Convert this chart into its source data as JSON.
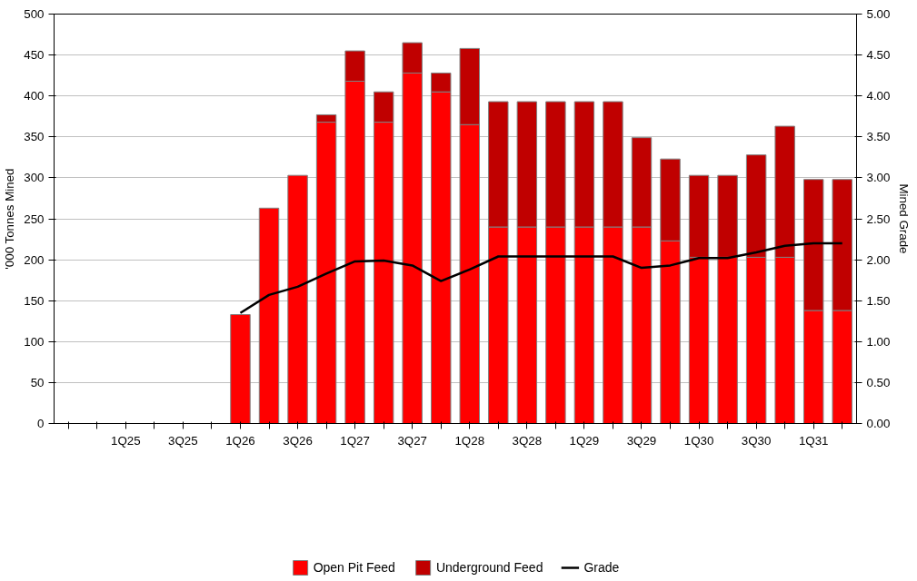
{
  "chart_data": {
    "type": "bar",
    "stacked": true,
    "ylabel": "'000 Tonnes Mined",
    "y2label": "Mined Grade",
    "categories": [
      null,
      null,
      "1Q25",
      null,
      "3Q25",
      null,
      "1Q26",
      null,
      "3Q26",
      null,
      "1Q27",
      null,
      "3Q27",
      null,
      "1Q28",
      null,
      "3Q28",
      null,
      "1Q29",
      null,
      "3Q29",
      null,
      "1Q30",
      null,
      "3Q30",
      null,
      "1Q31",
      null
    ],
    "series": [
      {
        "name": "Open Pit Feed",
        "color": "#ff0000",
        "values": [
          null,
          null,
          null,
          null,
          null,
          null,
          133,
          263,
          303,
          368,
          418,
          368,
          428,
          405,
          365,
          240,
          240,
          240,
          240,
          240,
          240,
          223,
          203,
          203,
          203,
          203,
          138,
          138
        ]
      },
      {
        "name": "Underground Feed",
        "color": "#c00000",
        "values": [
          null,
          null,
          null,
          null,
          null,
          null,
          0,
          0,
          0,
          9,
          37,
          37,
          37,
          23,
          93,
          153,
          153,
          153,
          153,
          153,
          109,
          100,
          100,
          100,
          125,
          160,
          160,
          160
        ]
      },
      {
        "name": "Grade",
        "type": "line",
        "axis": "y2",
        "color": "#000000",
        "values": [
          null,
          null,
          null,
          null,
          null,
          null,
          1.35,
          1.57,
          1.67,
          1.83,
          1.98,
          1.99,
          1.93,
          1.74,
          1.88,
          2.04,
          2.04,
          2.04,
          2.04,
          2.04,
          1.9,
          1.93,
          2.02,
          2.02,
          2.09,
          2.17,
          2.2,
          2.2
        ]
      }
    ],
    "ylim": [
      0,
      500
    ],
    "yticks": [
      0,
      50,
      100,
      150,
      200,
      250,
      300,
      350,
      400,
      450,
      500
    ],
    "y2lim": [
      0,
      5
    ],
    "y2ticks": [
      {
        "value": 0,
        "label": "0.00"
      },
      {
        "value": 0.5,
        "label": "0.50"
      },
      {
        "value": 1,
        "label": "1.00"
      },
      {
        "value": 1.5,
        "label": "1.50"
      },
      {
        "value": 2,
        "label": "2.00"
      },
      {
        "value": 2.5,
        "label": "2.50"
      },
      {
        "value": 3,
        "label": "3.00"
      },
      {
        "value": 3.5,
        "label": "3.50"
      },
      {
        "value": 4,
        "label": "4.00"
      },
      {
        "value": 4.5,
        "label": "4.50"
      },
      {
        "value": 5,
        "label": "5.00"
      }
    ],
    "grid": "y",
    "legend": "bottom"
  }
}
